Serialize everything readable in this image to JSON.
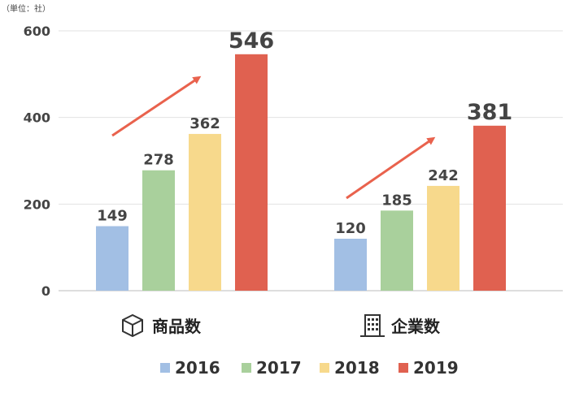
{
  "unit_note": "（単位：社）",
  "chart_data": {
    "type": "bar",
    "categories": [
      "商品数",
      "企業数"
    ],
    "category_icons": [
      "box-icon",
      "building-icon"
    ],
    "series": [
      {
        "name": "2016",
        "values": [
          149,
          120
        ],
        "color": "#a2bfe4"
      },
      {
        "name": "2017",
        "values": [
          278,
          185
        ],
        "color": "#a9d09c"
      },
      {
        "name": "2018",
        "values": [
          362,
          242
        ],
        "color": "#f7d98c"
      },
      {
        "name": "2019",
        "values": [
          546,
          381
        ],
        "color": "#e06150"
      }
    ],
    "ylim": [
      0,
      600
    ],
    "yticks": [
      0,
      200,
      400,
      600
    ],
    "grid": true,
    "legend_position": "bottom",
    "annotations": [
      "trend-arrow-up",
      "trend-arrow-up"
    ],
    "arrow_color": "#e9624d"
  }
}
